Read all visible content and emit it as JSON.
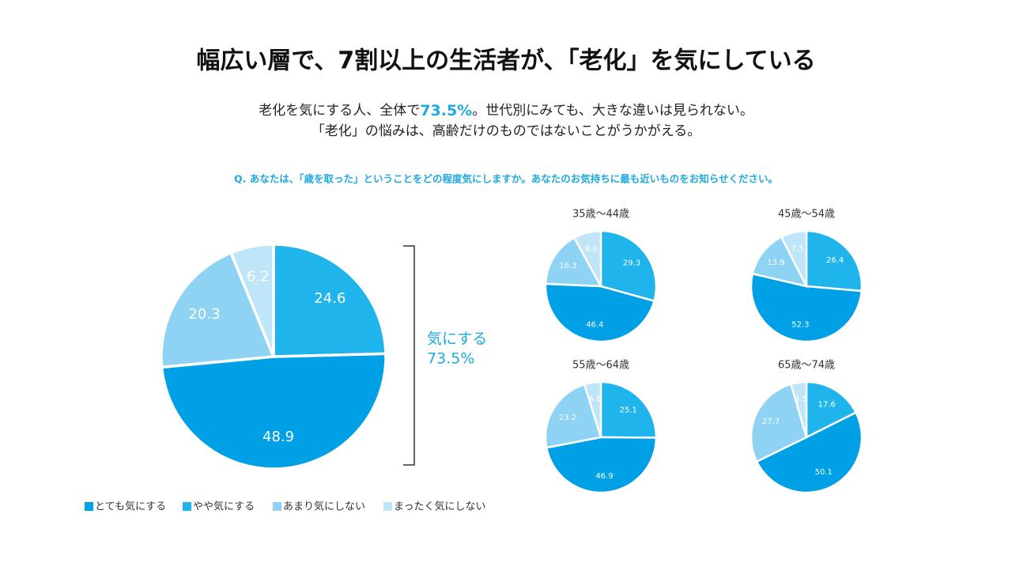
{
  "title": "幅広い層で、7割以上の生活者が、「老化」を気にしている",
  "subtitle": [
    [
      "老化を気にする人、全体で",
      "73.5%",
      "。世代別にみても、大きな違いは見られない。"
    ],
    "「老化」の悩みは、高齢だけのものではないことがうかがえる。"
  ],
  "question": "Q. あなたは、「歳を取った」ということをどの程度気にしますか。あなたのお気持ちに最も近いものをお知らせください。",
  "annotation": [
    "気にする",
    "73.5%"
  ],
  "chart_data": [
    {
      "type": "pie",
      "categories": [
        "やや気にする",
        "とても気にする",
        "あまり気にしない",
        "まったく気にしない"
      ],
      "colors": [
        "#1fb4ec",
        "#00a0e6",
        "#8ed3f4",
        "#bfe6f8"
      ],
      "values": [
        24.6,
        48.9,
        20.3,
        6.2
      ]
    },
    {
      "type": "pie",
      "title": "35歳〜44歳",
      "values": [
        29.3,
        46.4,
        16.3,
        8
      ],
      "value_labels": [
        "29.3",
        "46.4",
        "16.3",
        "8.0"
      ]
    },
    {
      "type": "pie",
      "title": "45歳〜54歳",
      "values": [
        26.4,
        52.3,
        13.9,
        7.5
      ]
    },
    {
      "type": "pie",
      "title": "55歳〜64歳",
      "values": [
        25.1,
        46.9,
        23.2,
        4.8
      ]
    },
    {
      "type": "pie",
      "title": "65歳〜74歳",
      "values": [
        17.6,
        50.1,
        27.7,
        4.5
      ]
    }
  ]
}
